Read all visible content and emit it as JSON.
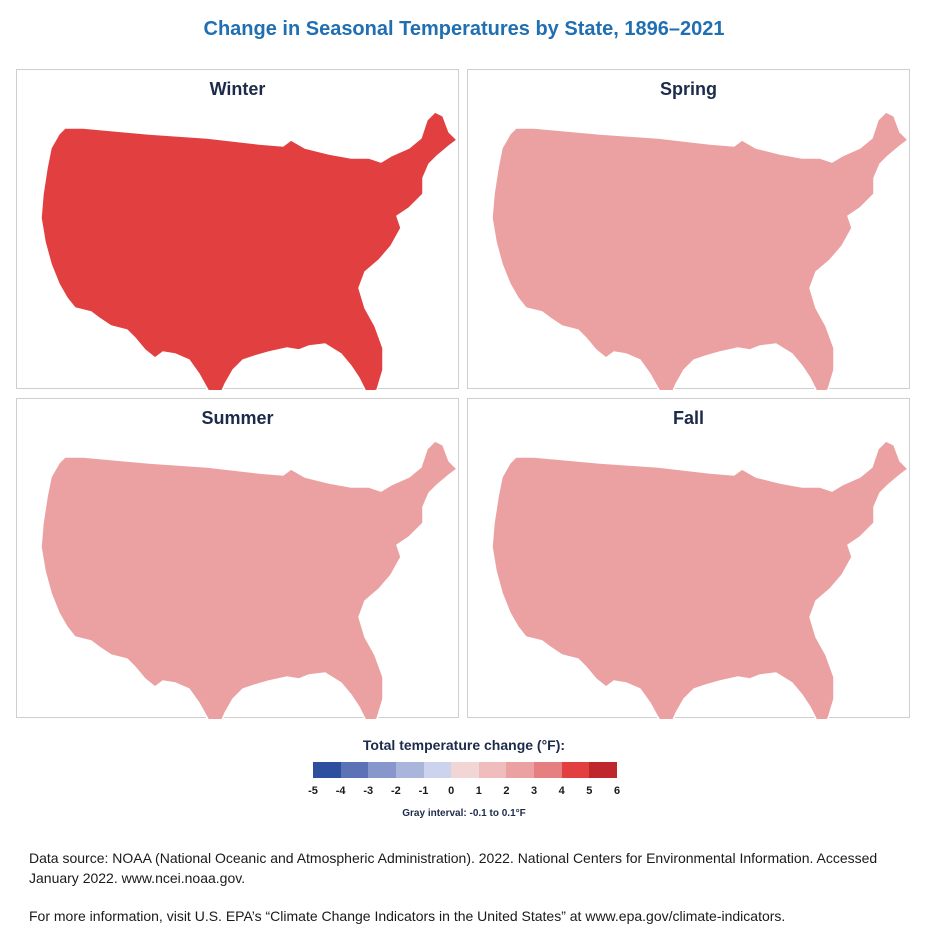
{
  "title": "Change in Seasonal Temperatures by State, 1896–2021",
  "panels": [
    {
      "label": "Winter",
      "level": 4
    },
    {
      "label": "Spring",
      "level": 2
    },
    {
      "label": "Summer",
      "level": 2
    },
    {
      "label": "Fall",
      "level": 2
    }
  ],
  "legend": {
    "title": "Total temperature change (°F):",
    "ticks": [
      "-5",
      "-4",
      "-3",
      "-2",
      "-1",
      "0",
      "1",
      "2",
      "3",
      "4",
      "5",
      "6"
    ],
    "colors": [
      "#2c4f9e",
      "#5b72b6",
      "#8796cb",
      "#aab5db",
      "#ccd3ec",
      "#f2d5d5",
      "#f0bcbc",
      "#eba1a1",
      "#e67f7f",
      "#e24040",
      "#c0272d"
    ],
    "gray_color": "#c6c6c6",
    "gray_note": "Gray interval: -0.1 to 0.1°F"
  },
  "footer": {
    "source": "Data source: NOAA (National Oceanic and Atmospheric Administration). 2022. National Centers for Environmental Information. Accessed January 2022. www.ncei.noaa.gov.",
    "more_info": "For more information, visit U.S. EPA’s “Climate Change Indicators in the United States” at www.epa.gov/climate-indicators."
  }
}
